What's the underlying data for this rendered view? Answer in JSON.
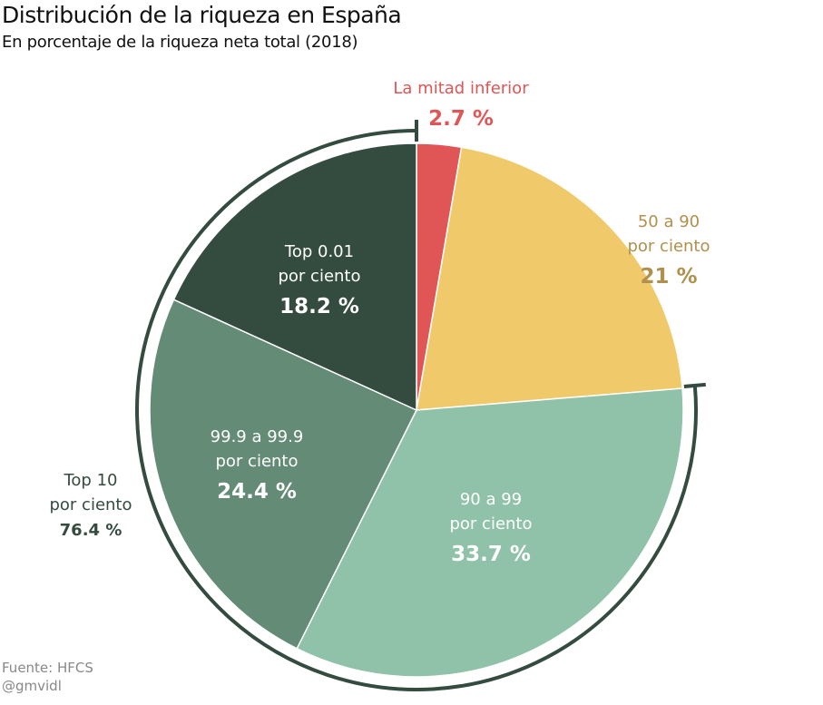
{
  "chart_data": {
    "type": "pie",
    "title": "Distribución de la riqueza en España",
    "subtitle": "En porcentaje de la riqueza neta total (2018)",
    "slices": [
      {
        "label_lines": [
          "La mitad inferior"
        ],
        "value_label": "2.7 %",
        "value": 2.7,
        "color": "#e05555",
        "label_color": "#e05555"
      },
      {
        "label_lines": [
          "50 a 90",
          "por ciento"
        ],
        "value_label": "21 %",
        "value": 21,
        "color": "#f0ca6a",
        "label_color": "#b0904c"
      },
      {
        "label_lines": [
          "90 a 99",
          "por ciento"
        ],
        "value_label": "33.7 %",
        "value": 33.7,
        "color": "#8fc2a8",
        "label_color": "#ffffff"
      },
      {
        "label_lines": [
          "99.9 a 99.9",
          "por ciento"
        ],
        "value_label": "24.4 %",
        "value": 24.4,
        "color": "#648b76",
        "label_color": "#ffffff"
      },
      {
        "label_lines": [
          "Top 0.01",
          "por ciento"
        ],
        "value_label": "18.2 %",
        "value": 18.2,
        "color": "#344c40",
        "label_color": "#ffffff"
      }
    ],
    "bracket": {
      "label_lines": [
        "Top 10",
        "por ciento"
      ],
      "value_label": "76.4 %",
      "value": 76.4,
      "color": "#344c40"
    }
  },
  "source": {
    "line1": "Fuente: HFCS",
    "line2": "@gmvidl"
  }
}
